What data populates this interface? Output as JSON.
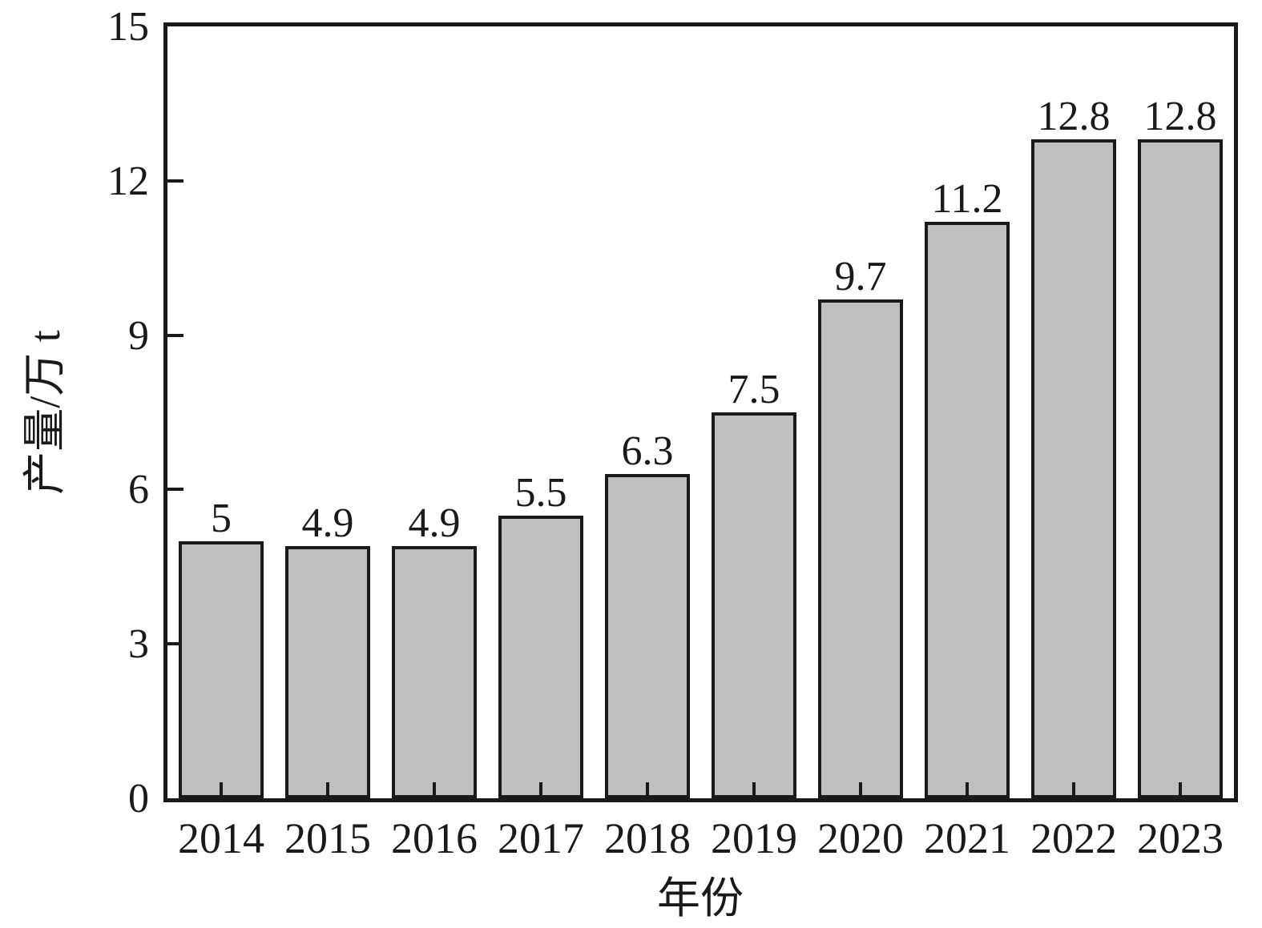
{
  "chart_data": {
    "type": "bar",
    "title": "",
    "categories": [
      "2014",
      "2015",
      "2016",
      "2017",
      "2018",
      "2019",
      "2020",
      "2021",
      "2022",
      "2023"
    ],
    "values": [
      5,
      4.9,
      4.9,
      5.5,
      6.3,
      7.5,
      9.7,
      11.2,
      12.8,
      12.8
    ],
    "value_labels": [
      "5",
      "4.9",
      "4.9",
      "5.5",
      "6.3",
      "7.5",
      "9.7",
      "11.2",
      "12.8",
      "12.8"
    ],
    "xlabel": "年份",
    "ylabel": "产量/万 t",
    "ylim": [
      0,
      15
    ],
    "yticks": [
      0,
      3,
      6,
      9,
      12,
      15
    ],
    "ytick_labels": [
      "0",
      "3",
      "6",
      "9",
      "12",
      "15"
    ],
    "grid": false,
    "legend": null,
    "colors": {
      "bar_fill": "#bfbfbf",
      "bar_border": "#1a1a1a",
      "axis": "#1a1a1a",
      "text": "#1a1a1a",
      "background": "#ffffff"
    }
  }
}
